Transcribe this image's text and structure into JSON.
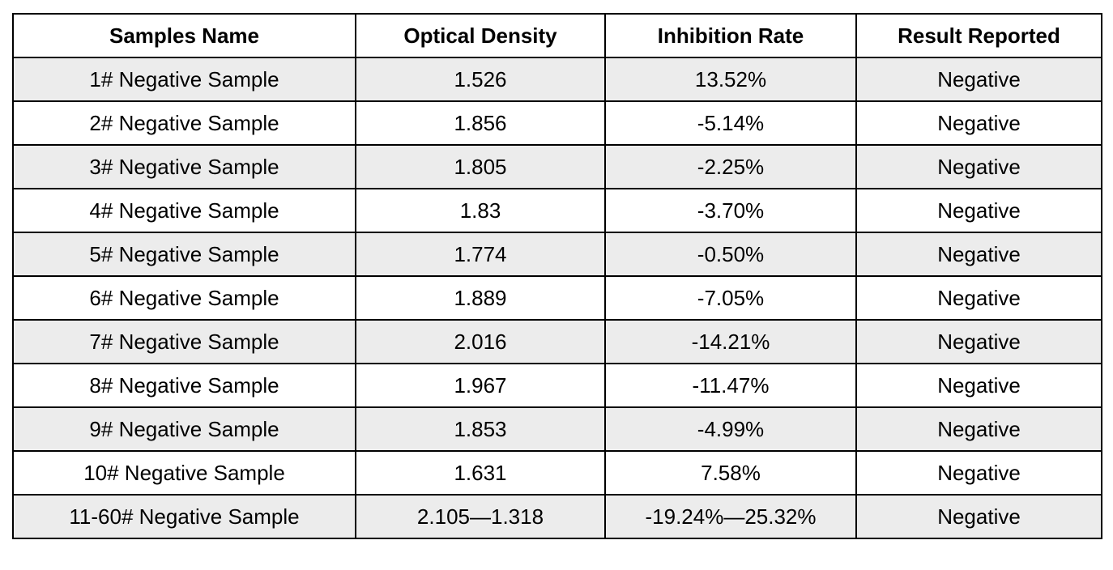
{
  "table": {
    "headers": [
      "Samples Name",
      "Optical Density",
      "Inhibition Rate",
      "Result Reported"
    ],
    "rows": [
      [
        "1# Negative Sample",
        "1.526",
        "13.52%",
        "Negative"
      ],
      [
        "2# Negative Sample",
        "1.856",
        "-5.14%",
        "Negative"
      ],
      [
        "3# Negative Sample",
        "1.805",
        "-2.25%",
        "Negative"
      ],
      [
        "4# Negative Sample",
        "1.83",
        "-3.70%",
        "Negative"
      ],
      [
        "5# Negative Sample",
        "1.774",
        "-0.50%",
        "Negative"
      ],
      [
        "6# Negative Sample",
        "1.889",
        "-7.05%",
        "Negative"
      ],
      [
        "7# Negative Sample",
        "2.016",
        "-14.21%",
        "Negative"
      ],
      [
        "8# Negative Sample",
        "1.967",
        "-11.47%",
        "Negative"
      ],
      [
        "9# Negative Sample",
        "1.853",
        "-4.99%",
        "Negative"
      ],
      [
        "10# Negative Sample",
        "1.631",
        "7.58%",
        "Negative"
      ],
      [
        "11-60# Negative Sample",
        "2.105—1.318",
        "-19.24%—25.32%",
        "Negative"
      ]
    ]
  },
  "colors": {
    "stripe": "#ececec",
    "background": "#ffffff",
    "border": "#000000"
  }
}
